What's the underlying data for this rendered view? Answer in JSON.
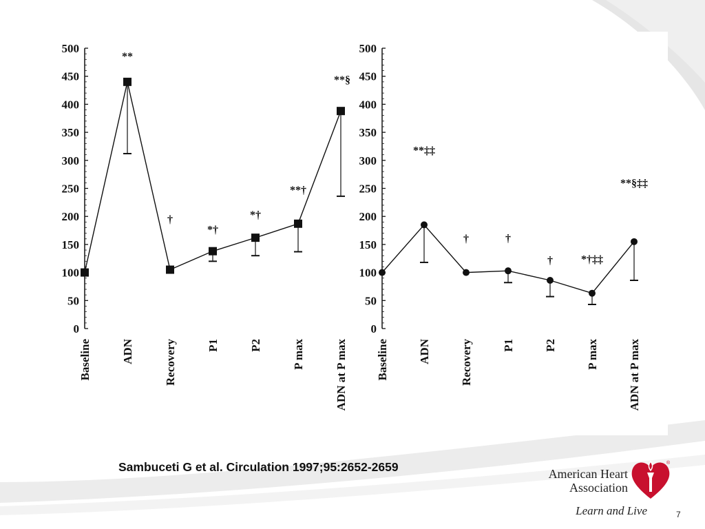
{
  "slide": {
    "citation": "Sambuceti G et al. Circulation 1997;95:2652-2659",
    "organization_line1": "American Heart",
    "organization_line2": "Association",
    "tagline": "Learn and Live",
    "registered_mark": "®",
    "page_number": "7",
    "colors": {
      "brand_red": "#c8102e",
      "swoosh": "#dcdcdc"
    }
  },
  "chart_data": [
    {
      "type": "line",
      "ylim": [
        0,
        500
      ],
      "yticks": [
        "0",
        "50",
        "100",
        "150",
        "200",
        "250",
        "300",
        "350",
        "400",
        "450",
        "500"
      ],
      "categories": [
        "Baseline",
        "ADN",
        "Recovery",
        "P1",
        "P2",
        "P max",
        "ADN at P max"
      ],
      "marker": "square",
      "values": [
        100,
        440,
        105,
        138,
        162,
        187,
        388
      ],
      "error_lower": [
        100,
        312,
        100,
        120,
        130,
        137,
        236
      ],
      "annotations": [
        "",
        "**",
        "†",
        "*†",
        "*†",
        "**†",
        "**§"
      ]
    },
    {
      "type": "line",
      "ylim": [
        0,
        500
      ],
      "yticks": [
        "0",
        "50",
        "100",
        "150",
        "200",
        "250",
        "300",
        "350",
        "400",
        "450",
        "500"
      ],
      "categories": [
        "Baseline",
        "ADN",
        "Recovery",
        "P1",
        "P2",
        "P max",
        "ADN at P max"
      ],
      "marker": "circle",
      "values": [
        100,
        185,
        100,
        103,
        86,
        63,
        155
      ],
      "error_lower": [
        100,
        118,
        100,
        82,
        57,
        43,
        86
      ],
      "annotations": [
        "",
        "**‡‡",
        "†",
        "†",
        "†",
        "*†‡‡",
        "**§‡‡"
      ]
    }
  ]
}
